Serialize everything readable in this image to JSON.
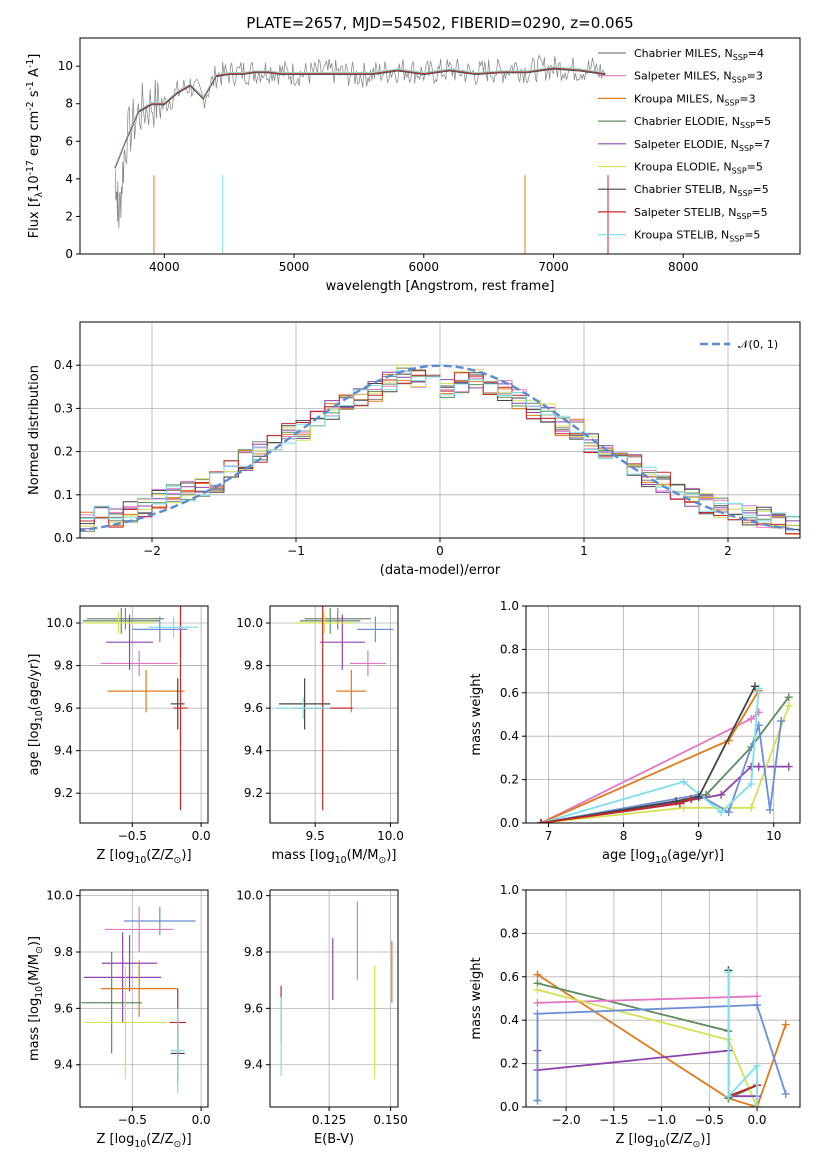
{
  "figure_title": "PLATE=2657, MJD=54502, FIBERID=0290, z=0.065",
  "chart_data": [
    {
      "id": "spectrum",
      "type": "line",
      "xlabel": "wavelength [Angstrom, rest frame]",
      "ylabel": "Flux [f$_\\lambda$10$^{-17}$ erg cm$^{-2}$ s$^{-1}$ A$^{-1}$]",
      "xlim": [
        3350,
        8900
      ],
      "ylim": [
        0,
        11.5
      ],
      "xticks": [
        4000,
        5000,
        6000,
        7000,
        8000
      ],
      "yticks": [
        0,
        2,
        4,
        6,
        8,
        10
      ],
      "grid": false,
      "legend": "upper-right",
      "data_color": "#808080",
      "data_series": {
        "x": [
          3620,
          3650,
          3700,
          3800,
          3900,
          4000,
          4100,
          4200,
          4300,
          4400,
          4500,
          4600,
          4700,
          4800,
          4900,
          5000,
          5100,
          5200,
          5300,
          5400,
          5500,
          5600,
          5700,
          5800,
          5900,
          6000,
          6100,
          6200,
          6300,
          6400,
          6500,
          6600,
          6700,
          6800,
          6900,
          7000,
          7100,
          7200,
          7300,
          7400
        ],
        "y": [
          4.5,
          2.0,
          6.0,
          7.5,
          8.0,
          8.0,
          8.6,
          9.0,
          8.3,
          9.5,
          9.6,
          9.7,
          9.7,
          9.8,
          9.7,
          9.6,
          9.6,
          9.7,
          9.7,
          9.6,
          9.5,
          9.6,
          9.7,
          9.8,
          9.8,
          9.6,
          9.7,
          9.8,
          9.7,
          9.6,
          9.8,
          9.7,
          10.0,
          9.7,
          9.9,
          9.9,
          9.9,
          9.8,
          9.9,
          9.6
        ]
      },
      "model_curve": {
        "x": [
          3620,
          3700,
          3800,
          3900,
          4000,
          4100,
          4200,
          4300,
          4400,
          4500,
          4600,
          4700,
          4800,
          4900,
          5000,
          5200,
          5400,
          5600,
          5800,
          6000,
          6200,
          6400,
          6600,
          6800,
          7000,
          7200,
          7400
        ],
        "y": [
          4.6,
          6.0,
          7.6,
          8.0,
          8.0,
          8.6,
          9.0,
          8.3,
          9.5,
          9.6,
          9.6,
          9.7,
          9.7,
          9.6,
          9.6,
          9.6,
          9.6,
          9.6,
          9.8,
          9.6,
          9.8,
          9.6,
          9.7,
          9.7,
          9.9,
          9.8,
          9.6
        ]
      },
      "legend_entries": [
        {
          "label": "Chabrier MILES, N",
          "sub": "SSP",
          "suffix": "=4",
          "color": "#808080"
        },
        {
          "label": "Salpeter MILES, N",
          "sub": "SSP",
          "suffix": "=3",
          "color": "#e377c2"
        },
        {
          "label": "Kroupa MILES, N",
          "sub": "SSP",
          "suffix": "=3",
          "color": "#e07b1d"
        },
        {
          "label": "Chabrier ELODIE, N",
          "sub": "SSP",
          "suffix": "=5",
          "color": "#5e8c5e"
        },
        {
          "label": "Salpeter ELODIE, N",
          "sub": "SSP",
          "suffix": "=7",
          "color": "#8e44ad"
        },
        {
          "label": "Kroupa ELODIE, N",
          "sub": "SSP",
          "suffix": "=5",
          "color": "#d4e157"
        },
        {
          "label": "Chabrier STELIB, N",
          "sub": "SSP",
          "suffix": "=5",
          "color": "#444444"
        },
        {
          "label": "Salpeter STELIB, N",
          "sub": "SSP",
          "suffix": "=5",
          "color": "#c62828"
        },
        {
          "label": "Kroupa STELIB, N",
          "sub": "SSP",
          "suffix": "=5",
          "color": "#80deea"
        }
      ]
    },
    {
      "id": "residuals",
      "type": "line",
      "xlabel": "(data-model)/error",
      "ylabel": "Normed distribution",
      "xlim": [
        -2.5,
        2.5
      ],
      "ylim": [
        0,
        0.5
      ],
      "xticks": [
        -2,
        -1,
        0,
        1,
        2
      ],
      "xtick_labels": [
        "−2",
        "−1",
        "0",
        "1",
        "2"
      ],
      "yticks": [
        0.0,
        0.1,
        0.2,
        0.3,
        0.4
      ],
      "grid": true,
      "legend": "upper-right",
      "legend_label": "𝒩(0, 1)",
      "gaussian_color": "#5b8bd0",
      "bin_width": 0.1,
      "bin_start": -2.5,
      "hist_values": [
        0.04,
        0.05,
        0.05,
        0.06,
        0.07,
        0.09,
        0.1,
        0.11,
        0.12,
        0.13,
        0.16,
        0.18,
        0.2,
        0.22,
        0.24,
        0.25,
        0.28,
        0.3,
        0.31,
        0.33,
        0.34,
        0.36,
        0.38,
        0.37,
        0.38,
        0.35,
        0.36,
        0.37,
        0.35,
        0.34,
        0.32,
        0.3,
        0.29,
        0.26,
        0.25,
        0.22,
        0.2,
        0.19,
        0.17,
        0.14,
        0.13,
        0.11,
        0.09,
        0.08,
        0.07,
        0.06,
        0.05,
        0.05,
        0.04,
        0.03
      ]
    },
    {
      "id": "age-vs-Z",
      "type": "scatter",
      "xlabel": "Z [log$_{10}$(Z/Z$_\\odot$)]",
      "ylabel": "age  [log$_{10}$(age/yr)]",
      "xlim": [
        -0.88,
        0.05
      ],
      "ylim": [
        9.06,
        10.08
      ],
      "xticks": [
        -0.5,
        0.0
      ],
      "xtick_labels": [
        "−0.5",
        "0.0"
      ],
      "yticks": [
        9.2,
        9.4,
        9.6,
        9.8,
        10.0
      ],
      "grid": true,
      "points": [
        {
          "x": -0.55,
          "y": 10.02,
          "xerr": 0.28,
          "yerr": 0.05,
          "color": "#808080"
        },
        {
          "x": -0.45,
          "y": 9.81,
          "xerr": 0.28,
          "yerr": 0.06,
          "color": "#e377c2"
        },
        {
          "x": -0.4,
          "y": 9.68,
          "xerr": 0.28,
          "yerr": 0.1,
          "color": "#e07b1d"
        },
        {
          "x": -0.58,
          "y": 10.01,
          "xerr": 0.28,
          "yerr": 0.06,
          "color": "#5e8c5e"
        },
        {
          "x": -0.52,
          "y": 9.91,
          "xerr": 0.17,
          "yerr": 0.13,
          "color": "#8e44ad"
        },
        {
          "x": -0.6,
          "y": 10.0,
          "xerr": 0.25,
          "yerr": 0.05,
          "color": "#d4e157"
        },
        {
          "x": -0.17,
          "y": 9.62,
          "xerr": 0.05,
          "yerr": 0.12,
          "color": "#444444"
        },
        {
          "x": -0.15,
          "y": 9.6,
          "xerr": 0.05,
          "yerr": 0.48,
          "color": "#c62828"
        },
        {
          "x": -0.2,
          "y": 9.98,
          "xerr": 0.18,
          "yerr": 0.05,
          "color": "#80deea"
        },
        {
          "x": -0.3,
          "y": 9.97,
          "xerr": 0.2,
          "yerr": 0.06,
          "color": "#6a8fd6"
        }
      ]
    },
    {
      "id": "age-vs-mass",
      "type": "scatter",
      "xlabel": "mass [log$_{10}$(M/M$_\\odot$)]",
      "ylabel": "",
      "xlim": [
        9.2,
        10.05
      ],
      "ylim": [
        9.06,
        10.08
      ],
      "xticks": [
        9.5,
        10.0
      ],
      "xtick_labels": [
        "9.5",
        "10.0"
      ],
      "yticks": [
        9.2,
        9.4,
        9.6,
        9.8,
        10.0
      ],
      "grid": true,
      "points": [
        {
          "x": 9.65,
          "y": 10.02,
          "xerr": 0.22,
          "yerr": 0.05,
          "color": "#808080"
        },
        {
          "x": 9.85,
          "y": 9.81,
          "xerr": 0.12,
          "yerr": 0.06,
          "color": "#e377c2"
        },
        {
          "x": 9.74,
          "y": 9.68,
          "xerr": 0.1,
          "yerr": 0.1,
          "color": "#e07b1d"
        },
        {
          "x": 9.6,
          "y": 10.01,
          "xerr": 0.2,
          "yerr": 0.06,
          "color": "#5e8c5e"
        },
        {
          "x": 9.68,
          "y": 9.91,
          "xerr": 0.15,
          "yerr": 0.13,
          "color": "#8e44ad"
        },
        {
          "x": 9.56,
          "y": 10.0,
          "xerr": 0.2,
          "yerr": 0.05,
          "color": "#d4e157"
        },
        {
          "x": 9.43,
          "y": 9.62,
          "xerr": 0.17,
          "yerr": 0.12,
          "color": "#444444"
        },
        {
          "x": 9.55,
          "y": 9.6,
          "xerr": 0.2,
          "yerr": 0.48,
          "color": "#c62828"
        },
        {
          "x": 9.42,
          "y": 9.6,
          "xerr": 0.18,
          "yerr": 0.05,
          "color": "#80deea"
        },
        {
          "x": 9.9,
          "y": 9.97,
          "xerr": 0.12,
          "yerr": 0.06,
          "color": "#6a8fd6"
        }
      ]
    },
    {
      "id": "weight-vs-age",
      "type": "line",
      "xlabel": "age  [log$_{10}$(age/yr)]",
      "ylabel": "mass weight",
      "xlim": [
        6.7,
        10.35
      ],
      "ylim": [
        0,
        1.0
      ],
      "xticks": [
        7,
        8,
        9,
        10
      ],
      "yticks": [
        0.0,
        0.2,
        0.4,
        0.6,
        0.8,
        1.0
      ],
      "grid": true,
      "series": [
        {
          "color": "#e377c2",
          "x": [
            6.9,
            9.7,
            9.8
          ],
          "y": [
            0.0,
            0.48,
            0.51
          ]
        },
        {
          "color": "#e07b1d",
          "x": [
            6.9,
            9.4,
            9.8
          ],
          "y": [
            0.0,
            0.38,
            0.61
          ]
        },
        {
          "color": "#5e8c5e",
          "x": [
            6.9,
            8.7,
            9.1,
            9.7,
            10.2
          ],
          "y": [
            0.0,
            0.1,
            0.13,
            0.35,
            0.58
          ]
        },
        {
          "color": "#8e44ad",
          "x": [
            6.9,
            8.8,
            9.3,
            9.7,
            9.8,
            10.2
          ],
          "y": [
            0.0,
            0.1,
            0.13,
            0.26,
            0.26,
            0.26
          ]
        },
        {
          "color": "#d4e157",
          "x": [
            6.9,
            8.8,
            9.7,
            10.2
          ],
          "y": [
            0.0,
            0.07,
            0.07,
            0.54
          ]
        },
        {
          "color": "#6a8fd6",
          "x": [
            6.9,
            9.0,
            9.4,
            9.8,
            9.95,
            10.1
          ],
          "y": [
            0.0,
            0.13,
            0.05,
            0.45,
            0.06,
            0.47
          ]
        },
        {
          "color": "#80deea",
          "x": [
            6.9,
            8.8,
            9.3,
            9.7,
            9.8
          ],
          "y": [
            0.0,
            0.19,
            0.05,
            0.18,
            0.62
          ]
        },
        {
          "color": "#444444",
          "x": [
            6.9,
            8.7,
            9.0,
            9.75
          ],
          "y": [
            0.0,
            0.1,
            0.12,
            0.63
          ]
        },
        {
          "color": "#c62828",
          "x": [
            6.9,
            8.75,
            8.9
          ],
          "y": [
            0.0,
            0.09,
            0.11
          ]
        }
      ]
    },
    {
      "id": "mass-vs-Z",
      "type": "scatter",
      "xlabel": "Z [log$_{10}$(Z/Z$_\\odot$)]",
      "ylabel": "mass [log$_{10}$(M/M$_\\odot$)]",
      "xlim": [
        -0.88,
        0.05
      ],
      "ylim": [
        9.25,
        10.02
      ],
      "xticks": [
        -0.5,
        0.0
      ],
      "xtick_labels": [
        "−0.5",
        "0.0"
      ],
      "yticks": [
        9.4,
        9.6,
        9.8,
        10.0
      ],
      "grid": true,
      "points": [
        {
          "x": -0.3,
          "y": 9.91,
          "xerr": 0.26,
          "yerr": 0.05,
          "color": "#6a8fd6"
        },
        {
          "x": -0.45,
          "y": 9.88,
          "xerr": 0.25,
          "yerr": 0.08,
          "color": "#e377c2"
        },
        {
          "x": -0.52,
          "y": 9.76,
          "xerr": 0.2,
          "yerr": 0.1,
          "color": "#8e44ad"
        },
        {
          "x": -0.57,
          "y": 9.71,
          "xerr": 0.28,
          "yerr": 0.16,
          "color": "#8e44ad"
        },
        {
          "x": -0.45,
          "y": 9.67,
          "xerr": 0.28,
          "yerr": 0.1,
          "color": "#e07b1d"
        },
        {
          "x": -0.65,
          "y": 9.62,
          "xerr": 0.22,
          "yerr": 0.18,
          "color": "#5e8c5e"
        },
        {
          "x": -0.55,
          "y": 9.55,
          "xerr": 0.3,
          "yerr": 0.2,
          "color": "#d4e157"
        },
        {
          "x": -0.17,
          "y": 9.55,
          "xerr": 0.06,
          "yerr": 0.12,
          "color": "#c62828"
        },
        {
          "x": -0.17,
          "y": 9.44,
          "xerr": 0.05,
          "yerr": 0.1,
          "color": "#444444"
        },
        {
          "x": -0.17,
          "y": 9.45,
          "xerr": 0.05,
          "yerr": 0.15,
          "color": "#80deea"
        }
      ]
    },
    {
      "id": "mass-vs-EBV",
      "type": "scatter",
      "xlabel": "E(B-V)",
      "ylabel": "",
      "xlim": [
        0.101,
        0.153
      ],
      "ylim": [
        9.25,
        10.02
      ],
      "xticks": [
        0.125,
        0.15
      ],
      "xtick_labels": [
        "0.125",
        "0.150"
      ],
      "yticks": [
        9.4,
        9.6,
        9.8,
        10.0
      ],
      "grid": true,
      "points": [
        {
          "x": 0.1055,
          "y": 9.58,
          "xerr": 0,
          "yerr": 0.1,
          "color": "#c62828"
        },
        {
          "x": 0.1055,
          "y": 9.5,
          "xerr": 0,
          "yerr": 0.14,
          "color": "#80deea"
        },
        {
          "x": 0.1265,
          "y": 9.74,
          "xerr": 0,
          "yerr": 0.11,
          "color": "#8e44ad"
        },
        {
          "x": 0.1365,
          "y": 9.84,
          "xerr": 0,
          "yerr": 0.14,
          "color": "#e377c2"
        },
        {
          "x": 0.1435,
          "y": 9.55,
          "xerr": 0,
          "yerr": 0.2,
          "color": "#d4e157"
        },
        {
          "x": 0.1505,
          "y": 9.73,
          "xerr": 0,
          "yerr": 0.11,
          "color": "#e07b1d"
        }
      ]
    },
    {
      "id": "weight-vs-Z",
      "type": "line",
      "xlabel": "Z [log$_{10}$(Z/Z$_\\odot$)]",
      "ylabel": "mass weight",
      "xlim": [
        -2.42,
        0.45
      ],
      "ylim": [
        0,
        1.0
      ],
      "xticks": [
        -2.0,
        -1.5,
        -1.0,
        -0.5,
        0.0
      ],
      "xtick_labels": [
        "−2.0",
        "−1.5",
        "−1.0",
        "−0.5",
        "0.0"
      ],
      "yticks": [
        0.0,
        0.2,
        0.4,
        0.6,
        0.8,
        1.0
      ],
      "grid": true,
      "series": [
        {
          "color": "#e07b1d",
          "x": [
            -2.3,
            -0.3,
            0.0,
            0.3
          ],
          "y": [
            0.61,
            0.04,
            0.0,
            0.38
          ]
        },
        {
          "color": "#5e8c5e",
          "x": [
            -2.3,
            -0.3,
            -0.3,
            0.0
          ],
          "y": [
            0.57,
            0.35,
            0.04,
            0.1
          ]
        },
        {
          "color": "#e377c2",
          "x": [
            -2.3,
            0.0
          ],
          "y": [
            0.48,
            0.51
          ]
        },
        {
          "color": "#d4e157",
          "x": [
            -2.3,
            -0.3,
            0.0
          ],
          "y": [
            0.54,
            0.31,
            0.0
          ]
        },
        {
          "color": "#8e44ad",
          "x": [
            -2.3,
            -2.3,
            -0.3,
            -0.3,
            0.0
          ],
          "y": [
            0.26,
            0.17,
            0.26,
            0.05,
            0.05
          ]
        },
        {
          "color": "#6a8fd6",
          "x": [
            -2.3,
            -2.3,
            0.0,
            0.3
          ],
          "y": [
            0.03,
            0.43,
            0.47,
            0.06
          ]
        },
        {
          "color": "#444444",
          "x": [
            -0.3,
            -0.3,
            0.0
          ],
          "y": [
            0.63,
            0.05,
            0.1
          ]
        },
        {
          "color": "#c62828",
          "x": [
            -0.3,
            0.0
          ],
          "y": [
            0.05,
            0.1
          ]
        },
        {
          "color": "#80deea",
          "x": [
            -0.3,
            -0.3,
            0.0,
            0.0
          ],
          "y": [
            0.62,
            0.05,
            0.19,
            0.0
          ]
        }
      ]
    }
  ]
}
